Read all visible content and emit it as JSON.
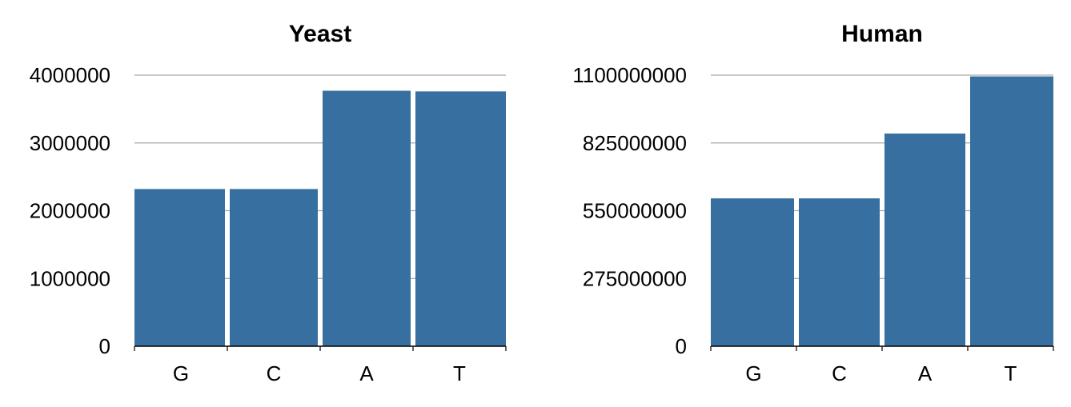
{
  "chart_data": [
    {
      "type": "bar",
      "title": "Yeast",
      "categories": [
        "G",
        "C",
        "A",
        "T"
      ],
      "values": [
        2320000,
        2320000,
        3770000,
        3760000
      ],
      "yticks": [
        0,
        1000000,
        2000000,
        3000000,
        4000000
      ],
      "ytick_labels": [
        "0",
        "1000000",
        "2000000",
        "3000000",
        "4000000"
      ],
      "ylim": [
        0,
        4000000
      ],
      "xlabel": "",
      "ylabel": "",
      "grid": true,
      "bar_color": "#366fa0"
    },
    {
      "type": "bar",
      "title": "Human",
      "categories": [
        "G",
        "C",
        "A",
        "T"
      ],
      "values": [
        600000000,
        600000000,
        863000000,
        1095000000
      ],
      "yticks": [
        0,
        275000000,
        550000000,
        825000000,
        1100000000
      ],
      "ytick_labels": [
        "0",
        "275000000",
        "550000000",
        "825000000",
        "1100000000"
      ],
      "ylim": [
        0,
        1100000000
      ],
      "xlabel": "",
      "ylabel": "",
      "grid": true,
      "bar_color": "#366fa0"
    }
  ]
}
